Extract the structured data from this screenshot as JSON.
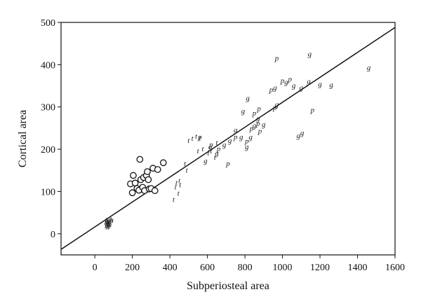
{
  "chart_data": {
    "type": "scatter",
    "title": "",
    "xlabel": "Subperiosteal area",
    "ylabel": "Cortical area",
    "xlim": [
      -180,
      1600
    ],
    "ylim": [
      -50,
      500
    ],
    "xticks": [
      0,
      200,
      400,
      600,
      800,
      1000,
      1200,
      1400,
      1600
    ],
    "yticks": [
      0,
      100,
      200,
      300,
      400,
      500
    ],
    "grid": false,
    "legend": "none",
    "regression_line": {
      "x": [
        -180,
        1600
      ],
      "y": [
        -37,
        488
      ]
    },
    "series": [
      {
        "marker": "circle",
        "points": [
          [
            190,
            118
          ],
          [
            200,
            97
          ],
          [
            205,
            138
          ],
          [
            215,
            120
          ],
          [
            225,
            107
          ],
          [
            235,
            103
          ],
          [
            240,
            176
          ],
          [
            245,
            128
          ],
          [
            255,
            110
          ],
          [
            260,
            133
          ],
          [
            265,
            102
          ],
          [
            275,
            138
          ],
          [
            280,
            147
          ],
          [
            285,
            128
          ],
          [
            290,
            106
          ],
          [
            300,
            107
          ],
          [
            310,
            155
          ],
          [
            320,
            102
          ],
          [
            335,
            152
          ],
          [
            365,
            168
          ]
        ]
      },
      {
        "marker": "letter",
        "letter": "h",
        "points": [
          [
            60,
            25
          ],
          [
            62,
            18
          ],
          [
            64,
            30
          ],
          [
            65,
            22
          ],
          [
            67,
            15
          ],
          [
            68,
            28
          ],
          [
            70,
            20
          ],
          [
            72,
            26
          ],
          [
            74,
            17
          ],
          [
            75,
            23
          ],
          [
            78,
            29
          ],
          [
            80,
            21
          ],
          [
            85,
            30
          ],
          [
            90,
            32
          ]
        ]
      },
      {
        "marker": "letter",
        "letter": "t",
        "points": [
          [
            420,
            80
          ],
          [
            430,
            110
          ],
          [
            435,
            120
          ],
          [
            445,
            95
          ],
          [
            450,
            125
          ],
          [
            455,
            115
          ],
          [
            480,
            165
          ],
          [
            490,
            150
          ],
          [
            500,
            220
          ],
          [
            520,
            225
          ],
          [
            540,
            230
          ],
          [
            550,
            195
          ],
          [
            560,
            225
          ],
          [
            575,
            200
          ],
          [
            605,
            190
          ],
          [
            620,
            195
          ],
          [
            640,
            180
          ],
          [
            650,
            215
          ]
        ]
      },
      {
        "marker": "letter",
        "letter": "p",
        "points": [
          [
            560,
            228
          ],
          [
            620,
            210
          ],
          [
            660,
            200
          ],
          [
            710,
            165
          ],
          [
            750,
            228
          ],
          [
            810,
            218
          ],
          [
            835,
            248
          ],
          [
            850,
            285
          ],
          [
            870,
            260
          ],
          [
            875,
            295
          ],
          [
            880,
            242
          ],
          [
            940,
            340
          ],
          [
            960,
            298
          ],
          [
            970,
            415
          ],
          [
            1000,
            362
          ],
          [
            1040,
            365
          ],
          [
            1160,
            292
          ]
        ]
      },
      {
        "marker": "letter",
        "letter": "g",
        "points": [
          [
            590,
            172
          ],
          [
            615,
            205
          ],
          [
            650,
            190
          ],
          [
            690,
            210
          ],
          [
            720,
            220
          ],
          [
            750,
            245
          ],
          [
            780,
            228
          ],
          [
            790,
            290
          ],
          [
            810,
            205
          ],
          [
            815,
            320
          ],
          [
            830,
            228
          ],
          [
            850,
            256
          ],
          [
            870,
            272
          ],
          [
            900,
            258
          ],
          [
            960,
            345
          ],
          [
            970,
            305
          ],
          [
            1020,
            358
          ],
          [
            1060,
            350
          ],
          [
            1085,
            232
          ],
          [
            1100,
            345
          ],
          [
            1105,
            238
          ],
          [
            1140,
            360
          ],
          [
            1145,
            425
          ],
          [
            1200,
            353
          ],
          [
            1260,
            352
          ],
          [
            1460,
            392
          ]
        ]
      }
    ]
  }
}
